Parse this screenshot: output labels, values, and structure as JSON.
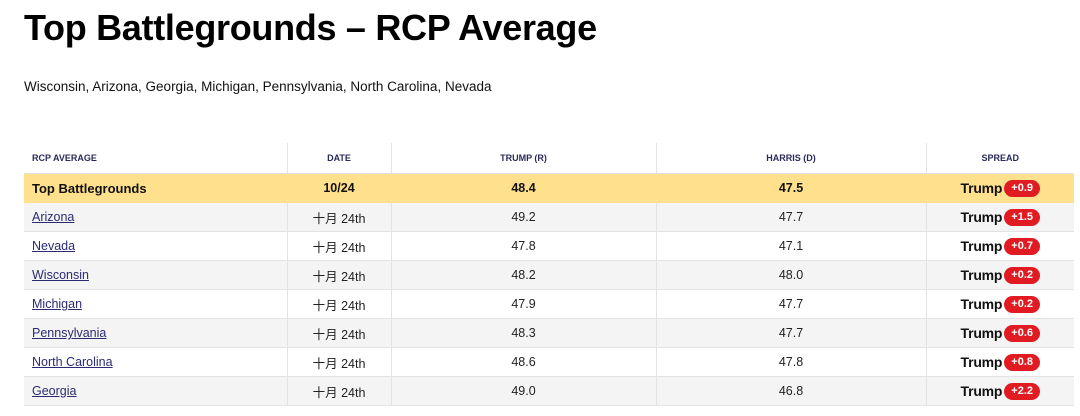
{
  "title": "Top Battlegrounds – RCP Average",
  "subtitle": "Wisconsin, Arizona, Georgia, Michigan, Pennsylvania, North Carolina, Nevada",
  "table": {
    "headers": {
      "rcp_average": "RCP AVERAGE",
      "date": "DATE",
      "trump": "TRUMP (R)",
      "harris": "HARRIS (D)",
      "spread": "SPREAD"
    },
    "summary": {
      "name": "Top Battlegrounds",
      "date": "10/24",
      "trump": "48.4",
      "harris": "47.5",
      "spread_leader": "Trump",
      "spread_value": "+0.9"
    },
    "rows": [
      {
        "state": "Arizona",
        "date": "十月 24th",
        "trump": "49.2",
        "harris": "47.7",
        "spread_leader": "Trump",
        "spread_value": "+1.5"
      },
      {
        "state": "Nevada",
        "date": "十月 24th",
        "trump": "47.8",
        "harris": "47.1",
        "spread_leader": "Trump",
        "spread_value": "+0.7"
      },
      {
        "state": "Wisconsin",
        "date": "十月 24th",
        "trump": "48.2",
        "harris": "48.0",
        "spread_leader": "Trump",
        "spread_value": "+0.2"
      },
      {
        "state": "Michigan",
        "date": "十月 24th",
        "trump": "47.9",
        "harris": "47.7",
        "spread_leader": "Trump",
        "spread_value": "+0.2"
      },
      {
        "state": "Pennsylvania",
        "date": "十月 24th",
        "trump": "48.3",
        "harris": "47.7",
        "spread_leader": "Trump",
        "spread_value": "+0.6"
      },
      {
        "state": "North Carolina",
        "date": "十月 24th",
        "trump": "48.6",
        "harris": "47.8",
        "spread_leader": "Trump",
        "spread_value": "+0.8"
      },
      {
        "state": "Georgia",
        "date": "十月 24th",
        "trump": "49.0",
        "harris": "46.8",
        "spread_leader": "Trump",
        "spread_value": "+2.2"
      }
    ]
  },
  "colors": {
    "summary_highlight": "#ffe08c",
    "spread_badge": "#e01b22",
    "link": "#2b2b73",
    "alt_row": "#f4f4f4"
  }
}
